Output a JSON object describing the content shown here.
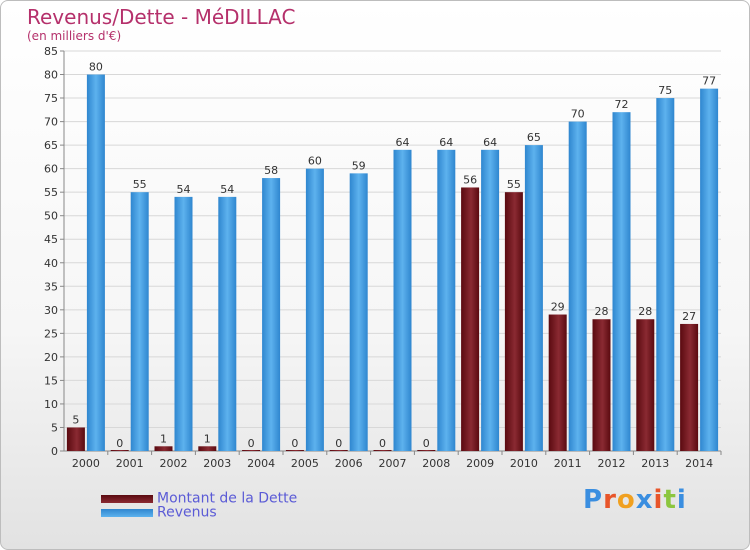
{
  "chart_data": {
    "type": "bar",
    "title": "Revenus/Dette - MéDILLAC",
    "subtitle": "(en milliers d'€)",
    "categories": [
      "2000",
      "2001",
      "2002",
      "2003",
      "2004",
      "2005",
      "2006",
      "2007",
      "2008",
      "2009",
      "2010",
      "2011",
      "2012",
      "2013",
      "2014"
    ],
    "series": [
      {
        "name": "Montant de la Dette",
        "color": "#7a1a22",
        "values": [
          5,
          0,
          1,
          1,
          0,
          0,
          0,
          0,
          0,
          56,
          55,
          29,
          28,
          28,
          27
        ]
      },
      {
        "name": "Revenus",
        "color": "#4ea6e6",
        "values": [
          80,
          55,
          54,
          54,
          58,
          60,
          59,
          64,
          64,
          64,
          65,
          70,
          72,
          75,
          77
        ]
      }
    ],
    "ylim": [
      0,
      85
    ],
    "yticks": [
      0,
      5,
      10,
      15,
      20,
      25,
      30,
      35,
      40,
      45,
      50,
      55,
      60,
      65,
      70,
      75,
      80,
      85
    ],
    "grid": true,
    "legend": "bottom-left"
  },
  "logo": {
    "text": "Proxiti",
    "colors": [
      "#3a8ee0",
      "#e8552a",
      "#f0a020",
      "#3a8ee0",
      "#e8552a",
      "#8cc63f",
      "#3a8ee0"
    ]
  }
}
